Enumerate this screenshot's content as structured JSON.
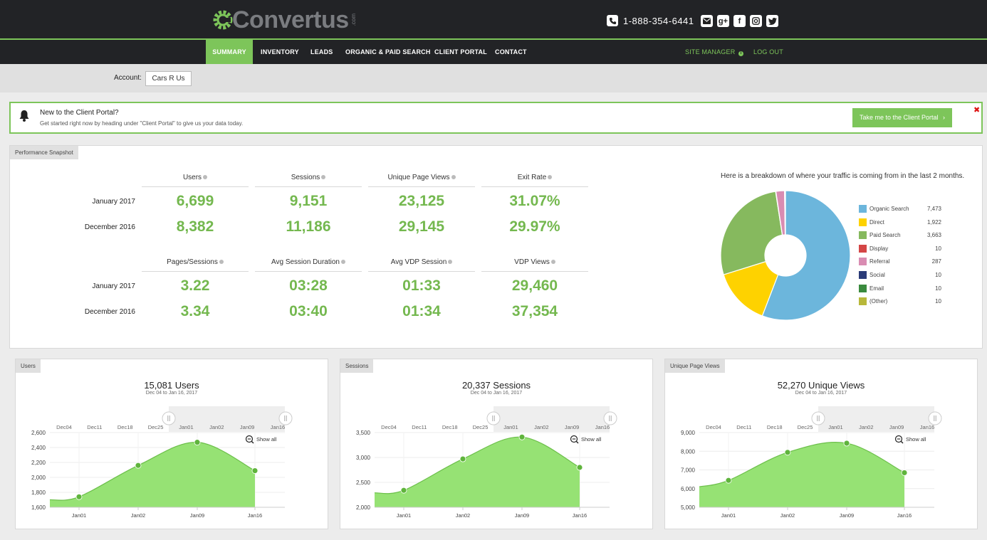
{
  "brand": {
    "name": "Convertus",
    "suffix": ".com",
    "accent": "#7dc55a",
    "dark": "#222326"
  },
  "header": {
    "phone": "1-888-354-6441",
    "social": [
      "email-icon",
      "google-plus-icon",
      "facebook-icon",
      "instagram-icon",
      "twitter-icon"
    ]
  },
  "nav": {
    "items": [
      "SUMMARY",
      "INVENTORY",
      "LEADS",
      "ORGANIC & PAID SEARCH",
      "CLIENT PORTAL",
      "CONTACT"
    ],
    "active": "SUMMARY",
    "site_manager": "SITE MANAGER",
    "logout": "LOG OUT"
  },
  "account": {
    "label": "Account:",
    "value": "Cars R Us"
  },
  "banner": {
    "title": "New to the Client Portal?",
    "subtitle": "Get started right now by heading under \"Client Portal\" to give us your data today.",
    "button": "Take me to the Client Portal",
    "close": "✖"
  },
  "performance": {
    "tab": "Performance Snapshot",
    "rows": [
      "January 2017",
      "December 2016"
    ],
    "group1": {
      "headers": [
        "Users",
        "Sessions",
        "Unique Page Views",
        "Exit Rate"
      ],
      "jan": [
        "6,699",
        "9,151",
        "23,125",
        "31.07%"
      ],
      "dec": [
        "8,382",
        "11,186",
        "29,145",
        "29.97%"
      ]
    },
    "group2": {
      "headers": [
        "Pages/Sessions",
        "Avg Session Duration",
        "Avg VDP Session",
        "VDP Views"
      ],
      "jan": [
        "3.22",
        "03:28",
        "01:33",
        "29,460"
      ],
      "dec": [
        "3.34",
        "03:40",
        "01:34",
        "37,354"
      ]
    }
  },
  "traffic": {
    "title": "Here is a breakdown of where your traffic is coming from in the last 2 months.",
    "sources": [
      {
        "name": "Organic Search",
        "value": "7,473",
        "n": 7473,
        "color": "#6cb6dc"
      },
      {
        "name": "Direct",
        "value": "1,922",
        "n": 1922,
        "color": "#fed200"
      },
      {
        "name": "Paid Search",
        "value": "3,663",
        "n": 3663,
        "color": "#86b95e"
      },
      {
        "name": "Display",
        "value": "10",
        "n": 10,
        "color": "#d44646"
      },
      {
        "name": "Referral",
        "value": "287",
        "n": 287,
        "color": "#d98cb2"
      },
      {
        "name": "Social",
        "value": "10",
        "n": 10,
        "color": "#2b3b78"
      },
      {
        "name": "Email",
        "value": "10",
        "n": 10,
        "color": "#3a8a3e"
      },
      {
        "name": "(Other)",
        "value": "10",
        "n": 10,
        "color": "#b8b83a"
      }
    ]
  },
  "chart_data": [
    {
      "type": "area",
      "tab": "Users",
      "title": "15,081 Users",
      "subtitle": "Dec 04 to Jan 16, 2017",
      "navigator_ticks": [
        "Dec04",
        "Dec11",
        "Dec18",
        "Dec25",
        "Jan01",
        "Jan02",
        "Jan09",
        "Jan16"
      ],
      "x": [
        "Jan01",
        "Jan02",
        "Jan09",
        "Jan16"
      ],
      "values": [
        1740,
        2160,
        2470,
        2090
      ],
      "start_value": 1700,
      "ylim": [
        1600,
        2600
      ],
      "yticks": [
        "1,600",
        "1,800",
        "2,000",
        "2,200",
        "2,400",
        "2,600"
      ],
      "yticks_n": [
        1600,
        1800,
        2000,
        2200,
        2400,
        2600
      ],
      "show_all": "Show all"
    },
    {
      "type": "area",
      "tab": "Sessions",
      "title": "20,337 Sessions",
      "subtitle": "Dec 04 to Jan 16, 2017",
      "navigator_ticks": [
        "Dec04",
        "Dec11",
        "Dec18",
        "Dec25",
        "Jan01",
        "Jan02",
        "Jan09",
        "Jan16"
      ],
      "x": [
        "Jan01",
        "Jan02",
        "Jan09",
        "Jan16"
      ],
      "values": [
        2340,
        2970,
        3410,
        2800
      ],
      "start_value": 2290,
      "ylim": [
        2000,
        3500
      ],
      "yticks": [
        "2,000",
        "2,500",
        "3,000",
        "3,500"
      ],
      "yticks_n": [
        2000,
        2500,
        3000,
        3500
      ],
      "show_all": "Show all"
    },
    {
      "type": "area",
      "tab": "Unique Page Views",
      "title": "52,270 Unique Views",
      "subtitle": "Dec 04 to Jan 16, 2017",
      "navigator_ticks": [
        "Dec04",
        "Dec11",
        "Dec18",
        "Dec25",
        "Jan01",
        "Jan02",
        "Jan09",
        "Jan16"
      ],
      "x": [
        "Jan01",
        "Jan02",
        "Jan09",
        "Jan16"
      ],
      "values": [
        6440,
        7940,
        8430,
        6850
      ],
      "start_value": 6100,
      "ylim": [
        5000,
        9000
      ],
      "yticks": [
        "5,000",
        "6,000",
        "7,000",
        "8,000",
        "9,000"
      ],
      "yticks_n": [
        5000,
        6000,
        7000,
        8000,
        9000
      ],
      "show_all": "Show all"
    }
  ]
}
